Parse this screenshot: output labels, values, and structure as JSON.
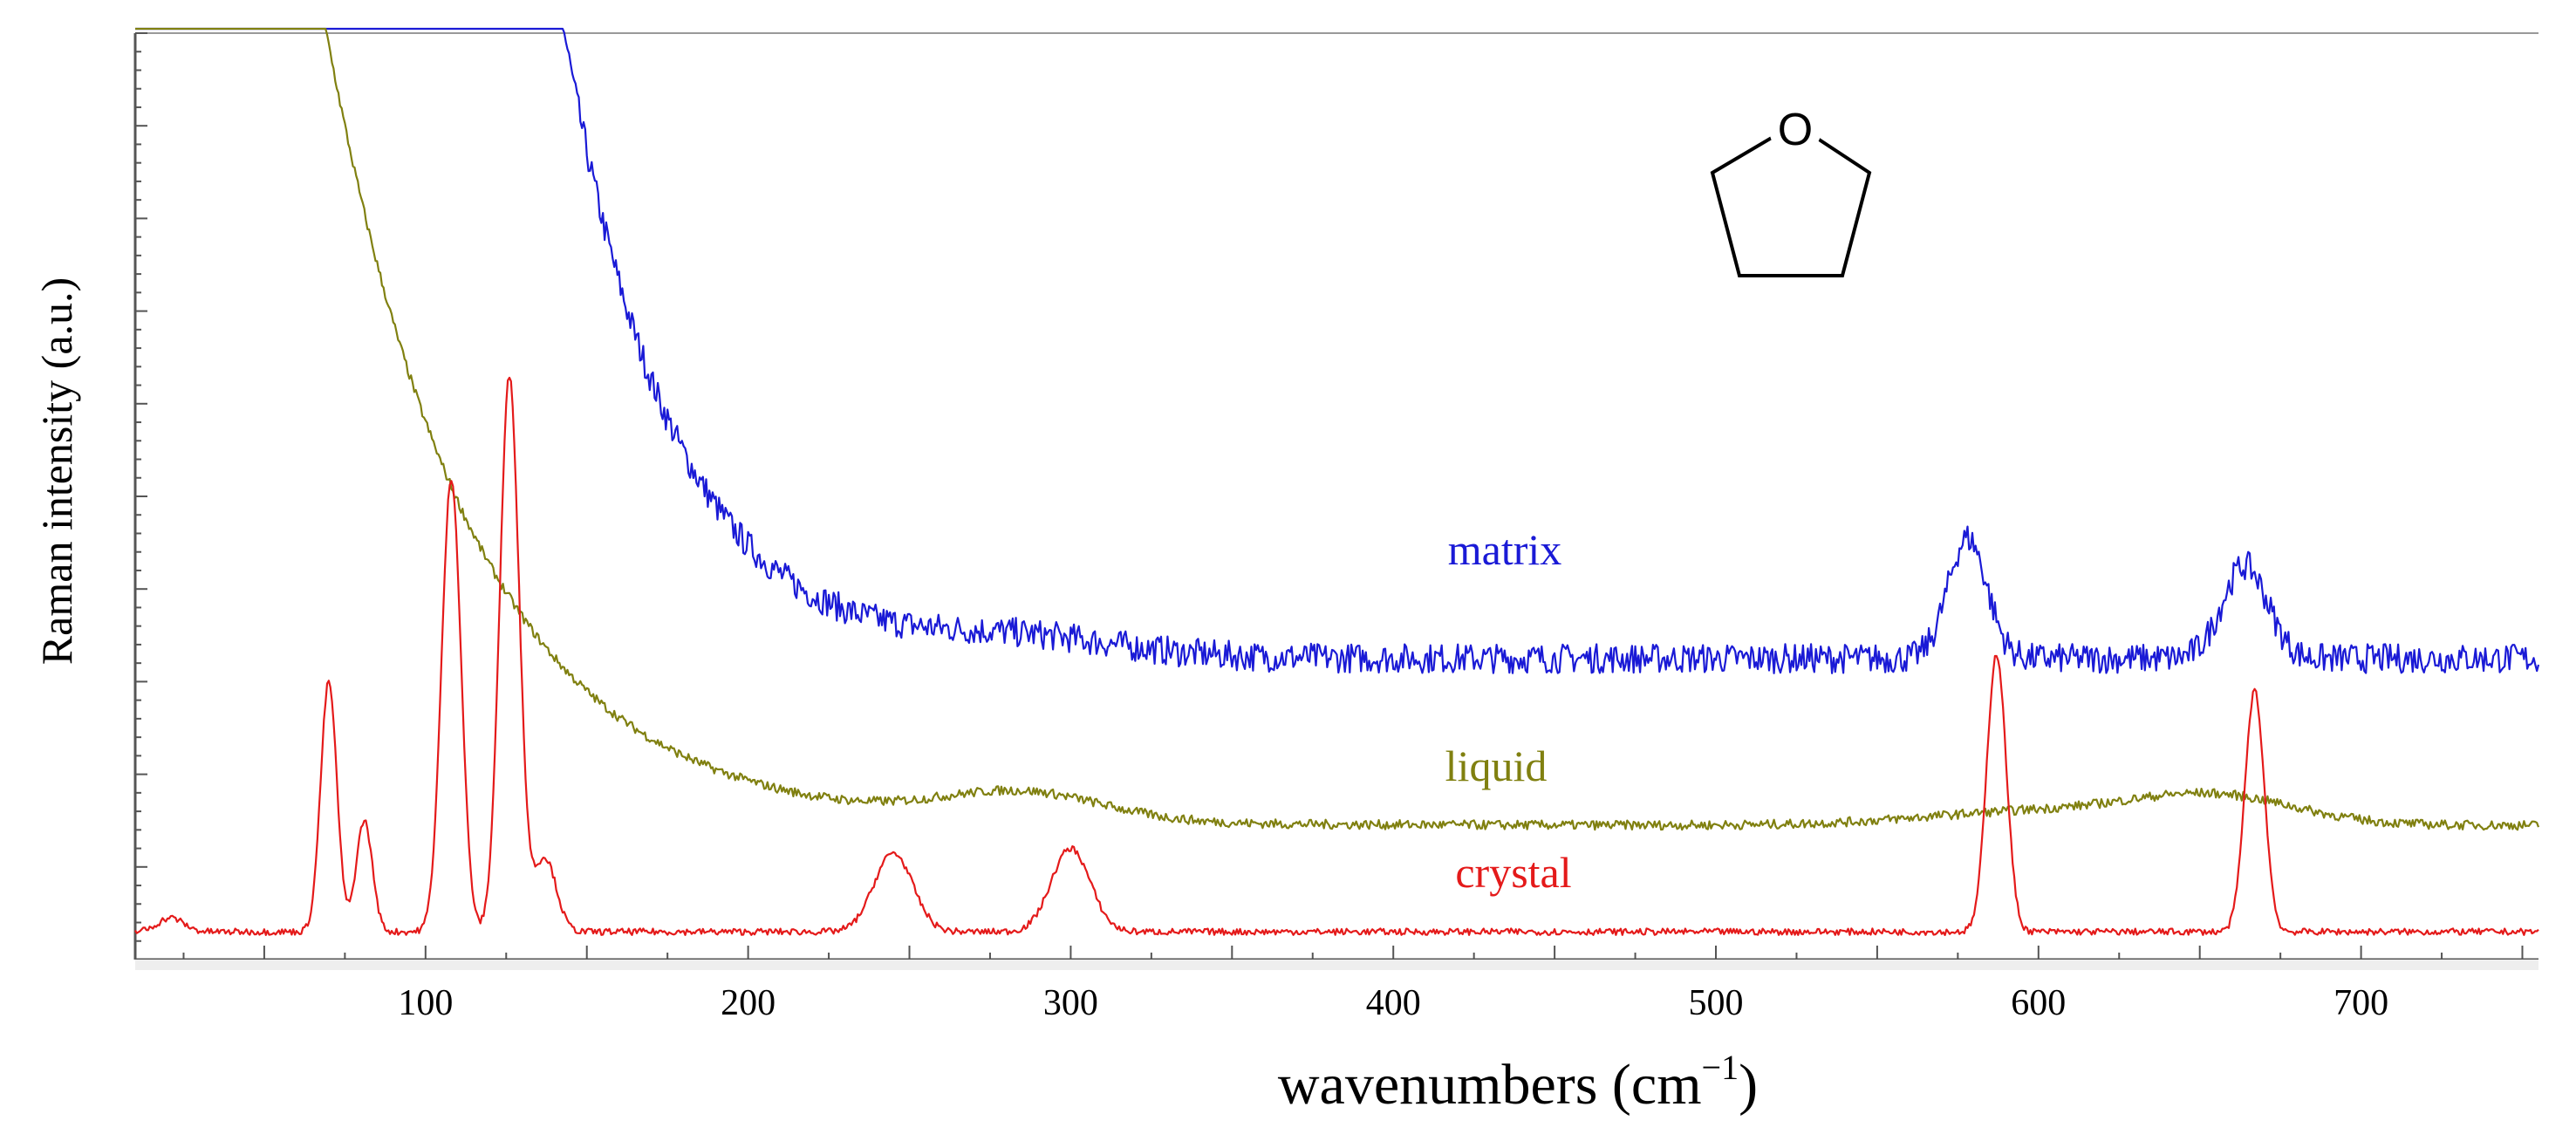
{
  "chart_data": {
    "type": "line",
    "title": "",
    "xlabel": "wavenumbers (cm",
    "xlabel_superscript": "−1",
    "xlabel_close": ")",
    "ylabel": "Raman intensity (a.u.)",
    "xlim": [
      10,
      755
    ],
    "ylim": [
      0,
      100
    ],
    "xticks": [
      100,
      200,
      300,
      400,
      500,
      600,
      700
    ],
    "xtick_labels": [
      "100",
      "200",
      "300",
      "400",
      "500",
      "600",
      "700"
    ],
    "yticks_labeled": false,
    "grid": false,
    "legend": "inline",
    "molecule": {
      "name": "tetrahydrofuran",
      "atom_label": "O"
    },
    "series": [
      {
        "name": "matrix",
        "color": "#1a1ad6",
        "baseline": 32.5,
        "decay": {
          "amplitude": 1100,
          "rate": 0.03,
          "offset": 50
        },
        "noise": 1.6,
        "peaks": [
          {
            "x": 285,
            "height": 1.8,
            "width": 30
          },
          {
            "x": 578,
            "height": 13,
            "width": 6
          },
          {
            "x": 664,
            "height": 10,
            "width": 7
          }
        ]
      },
      {
        "name": "liquid",
        "color": "#808010",
        "baseline": 14.5,
        "decay": {
          "amplitude": 105,
          "rate": 0.022,
          "offset": 60
        },
        "noise": 0.5,
        "peaks": [
          {
            "x": 285,
            "height": 3.0,
            "width": 25
          },
          {
            "x": 600,
            "height": 1.5,
            "width": 35
          },
          {
            "x": 655,
            "height": 3.0,
            "width": 25
          }
        ]
      },
      {
        "name": "crystal",
        "color": "#e41a1a",
        "baseline": 3.0,
        "decay": {
          "amplitude": 0,
          "rate": 0,
          "offset": 0
        },
        "noise": 0.35,
        "peaks": [
          {
            "x": 21,
            "height": 1.5,
            "width": 4
          },
          {
            "x": 70,
            "height": 27,
            "width": 2.5
          },
          {
            "x": 81,
            "height": 12,
            "width": 2.5
          },
          {
            "x": 108,
            "height": 49,
            "width": 3
          },
          {
            "x": 126,
            "height": 60,
            "width": 3
          },
          {
            "x": 137,
            "height": 8,
            "width": 3.5
          },
          {
            "x": 245,
            "height": 8.5,
            "width": 6
          },
          {
            "x": 300,
            "height": 9,
            "width": 6
          },
          {
            "x": 587,
            "height": 30,
            "width": 3
          },
          {
            "x": 667,
            "height": 26,
            "width": 3
          }
        ]
      }
    ]
  }
}
